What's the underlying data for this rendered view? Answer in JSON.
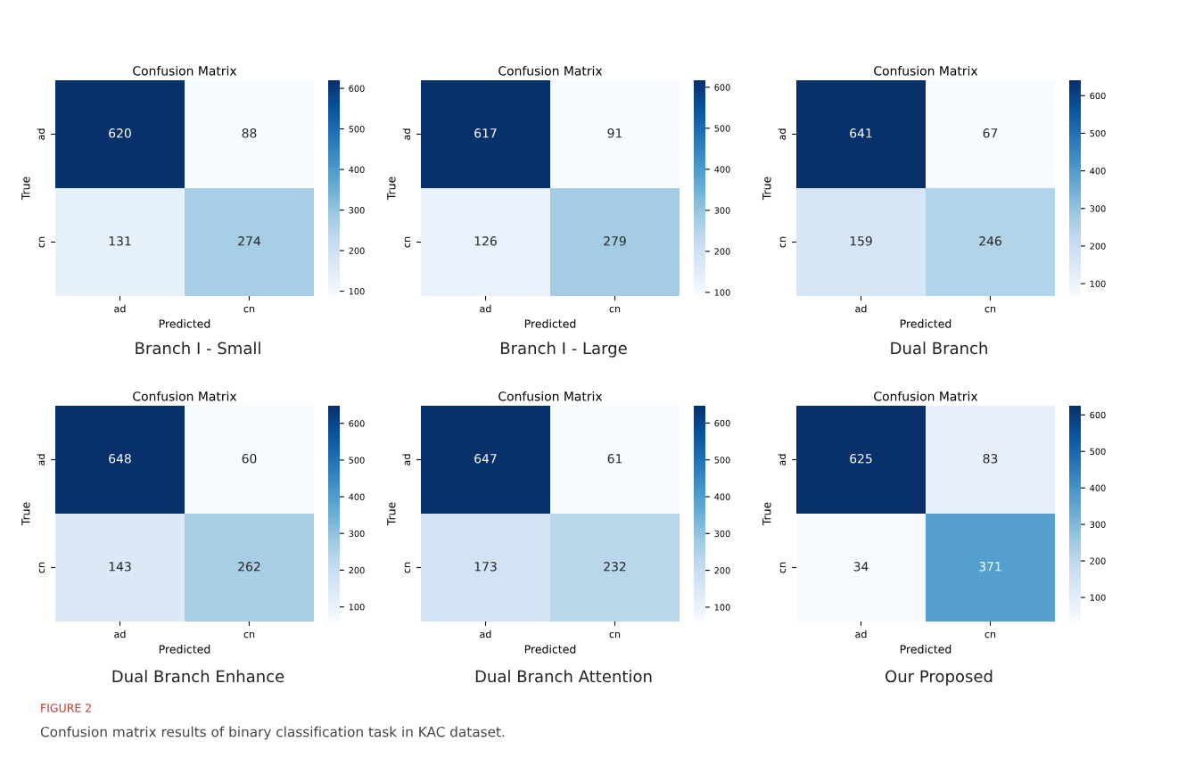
{
  "chart_data": [
    {
      "type": "heatmap",
      "title": "Confusion Matrix",
      "xlabel": "Predicted",
      "ylabel": "True",
      "categories": [
        "ad",
        "cn"
      ],
      "y_categories": [
        "ad",
        "cn"
      ],
      "cells": [
        [
          620,
          88
        ],
        [
          131,
          274
        ]
      ],
      "data_labels": true,
      "clim": [
        88,
        620
      ],
      "cticks": [
        100,
        200,
        300,
        400,
        500,
        600
      ],
      "annotations": [
        "Branch I - Small"
      ]
    },
    {
      "type": "heatmap",
      "title": "Confusion Matrix",
      "xlabel": "Predicted",
      "ylabel": "True",
      "categories": [
        "ad",
        "cn"
      ],
      "y_categories": [
        "ad",
        "cn"
      ],
      "cells": [
        [
          617,
          91
        ],
        [
          126,
          279
        ]
      ],
      "data_labels": true,
      "clim": [
        91,
        617
      ],
      "cticks": [
        100,
        200,
        300,
        400,
        500,
        600
      ],
      "annotations": [
        "Branch I - Large"
      ]
    },
    {
      "type": "heatmap",
      "title": "Confusion Matrix",
      "xlabel": "Predicted",
      "ylabel": "True",
      "categories": [
        "ad",
        "cn"
      ],
      "y_categories": [
        "ad",
        "cn"
      ],
      "cells": [
        [
          641,
          67
        ],
        [
          159,
          246
        ]
      ],
      "data_labels": true,
      "clim": [
        67,
        641
      ],
      "cticks": [
        100,
        200,
        300,
        400,
        500,
        600
      ],
      "annotations": [
        "Dual Branch"
      ]
    },
    {
      "type": "heatmap",
      "title": "Confusion Matrix",
      "xlabel": "Predicted",
      "ylabel": "True",
      "categories": [
        "ad",
        "cn"
      ],
      "y_categories": [
        "ad",
        "cn"
      ],
      "cells": [
        [
          648,
          60
        ],
        [
          143,
          262
        ]
      ],
      "data_labels": true,
      "clim": [
        60,
        648
      ],
      "cticks": [
        100,
        200,
        300,
        400,
        500,
        600
      ],
      "annotations": [
        "Dual Branch Enhance"
      ]
    },
    {
      "type": "heatmap",
      "title": "Confusion Matrix",
      "xlabel": "Predicted",
      "ylabel": "True",
      "categories": [
        "ad",
        "cn"
      ],
      "y_categories": [
        "ad",
        "cn"
      ],
      "cells": [
        [
          647,
          61
        ],
        [
          173,
          232
        ]
      ],
      "data_labels": true,
      "clim": [
        61,
        647
      ],
      "cticks": [
        100,
        200,
        300,
        400,
        500,
        600
      ],
      "annotations": [
        "Dual Branch Attention"
      ]
    },
    {
      "type": "heatmap",
      "title": "Confusion Matrix",
      "xlabel": "Predicted",
      "ylabel": "True",
      "categories": [
        "ad",
        "cn"
      ],
      "y_categories": [
        "ad",
        "cn"
      ],
      "cells": [
        [
          625,
          83
        ],
        [
          34,
          371
        ]
      ],
      "data_labels": true,
      "clim": [
        34,
        625
      ],
      "cticks": [
        100,
        200,
        300,
        400,
        500,
        600
      ],
      "annotations": [
        "Our Proposed",
        "FIGURE 2",
        "Confusion matrix results of binary classification task in KAC dataset."
      ]
    }
  ]
}
